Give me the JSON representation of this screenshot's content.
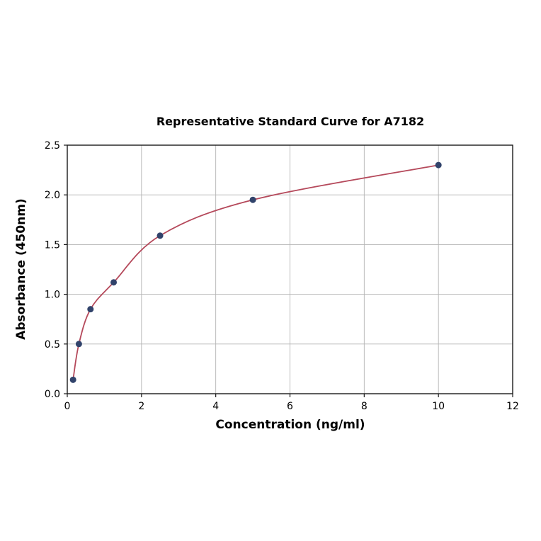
{
  "chart_data": {
    "type": "scatter",
    "title": "Representative Standard Curve for A7182",
    "xlabel": "Concentration (ng/ml)",
    "ylabel": "Absorbance (450nm)",
    "x": [
      0.156,
      0.313,
      0.625,
      1.25,
      2.5,
      5,
      10
    ],
    "y": [
      0.14,
      0.5,
      0.85,
      1.12,
      1.59,
      1.95,
      2.3
    ],
    "has_fit_curve": true,
    "xlim": [
      0,
      12
    ],
    "ylim": [
      0,
      2.5
    ],
    "xticks": [
      0,
      2,
      4,
      6,
      8,
      10,
      12
    ],
    "xtick_labels": [
      "0",
      "2",
      "4",
      "6",
      "8",
      "10",
      "12"
    ],
    "yticks": [
      0.0,
      0.5,
      1.0,
      1.5,
      2.0,
      2.5
    ],
    "ytick_labels": [
      "0.0",
      "0.5",
      "1.0",
      "1.5",
      "2.0",
      "2.5"
    ],
    "grid": true,
    "legend": "none",
    "colors": {
      "point": "#31436b",
      "curve": "#b5495b",
      "grid": "#b3b3b3",
      "axis": "#1a1a1a",
      "background": "#ffffff"
    }
  }
}
